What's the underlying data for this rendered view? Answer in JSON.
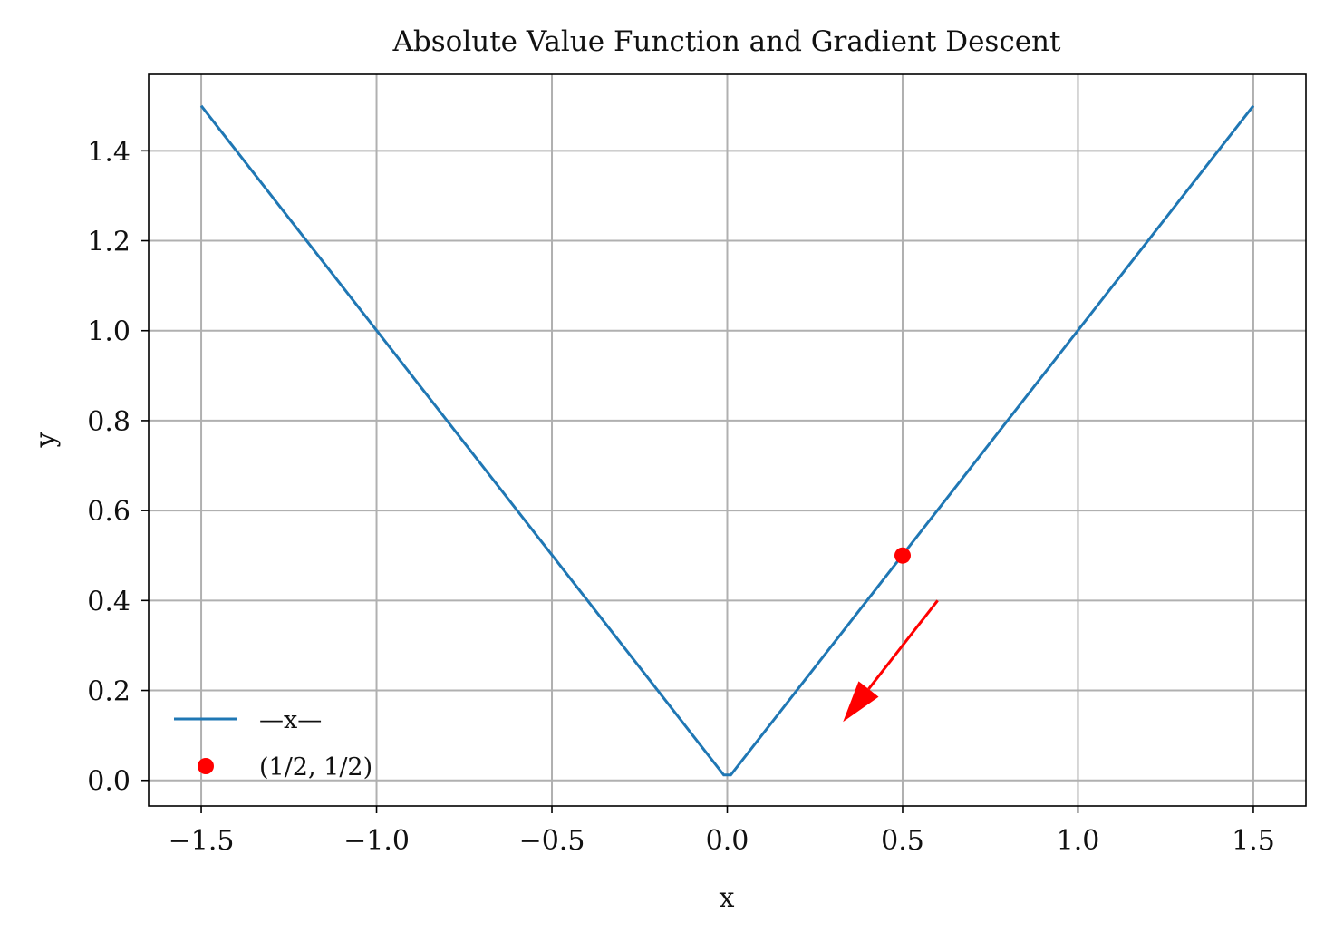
{
  "chart_data": {
    "type": "line",
    "title": "Absolute Value Function and Gradient Descent",
    "xlabel": "x",
    "ylabel": "y",
    "xlim": [
      -1.65,
      1.65
    ],
    "ylim": [
      -0.057,
      1.57
    ],
    "xticks": [
      -1.5,
      -1.0,
      -0.5,
      0.0,
      0.5,
      1.0,
      1.5
    ],
    "xtick_labels": [
      "−1.5",
      "−1.0",
      "−0.5",
      "0.0",
      "0.5",
      "1.0",
      "1.5"
    ],
    "yticks": [
      0.0,
      0.2,
      0.4,
      0.6,
      0.8,
      1.0,
      1.2,
      1.4
    ],
    "ytick_labels": [
      "0.0",
      "0.2",
      "0.4",
      "0.6",
      "0.8",
      "1.0",
      "1.2",
      "1.4"
    ],
    "grid": true,
    "legend_placement": "lower-left",
    "series": [
      {
        "name": "—x—",
        "type": "line",
        "color": "#1f77b4",
        "x": [
          -1.5,
          -0.01,
          0.01,
          1.5
        ],
        "y": [
          1.5,
          0.012,
          0.012,
          1.5
        ]
      },
      {
        "name": "(1/2, 1/2)",
        "type": "scatter",
        "color": "#ff0000",
        "x": [
          0.5
        ],
        "y": [
          0.5
        ]
      }
    ],
    "annotations": [
      {
        "type": "arrow",
        "color": "#ff0000",
        "from": [
          0.6,
          0.4
        ],
        "to": [
          0.33,
          0.13
        ]
      }
    ]
  }
}
